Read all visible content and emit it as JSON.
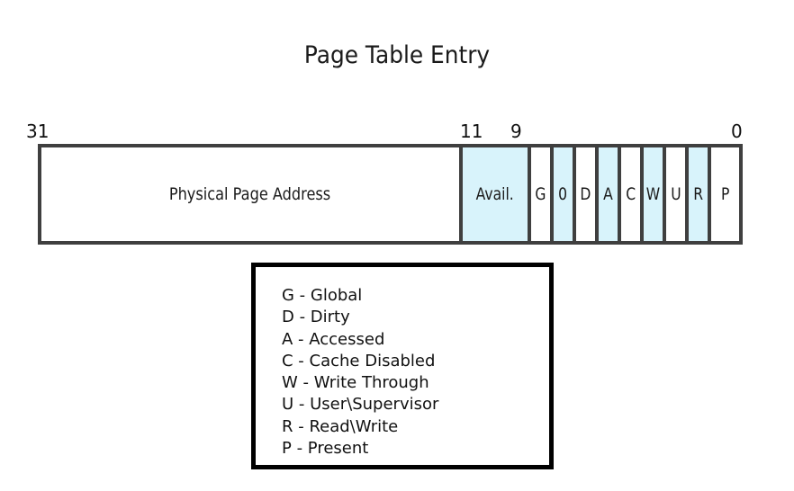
{
  "title": "Page Table Entry",
  "bit_numbers": {
    "left": "31",
    "mid_a": "11",
    "mid_b": "9",
    "right": "0"
  },
  "fields": [
    {
      "label": "Physical Page Address",
      "highlight": false
    },
    {
      "label": "Avail.",
      "highlight": true
    },
    {
      "label": "G",
      "highlight": false
    },
    {
      "label": "0",
      "highlight": true
    },
    {
      "label": "D",
      "highlight": false
    },
    {
      "label": "A",
      "highlight": true
    },
    {
      "label": "C",
      "highlight": false
    },
    {
      "label": "W",
      "highlight": true
    },
    {
      "label": "U",
      "highlight": false
    },
    {
      "label": "R",
      "highlight": true
    },
    {
      "label": "P",
      "highlight": false
    }
  ],
  "legend": [
    "G - Global",
    "D - Dirty",
    "A - Accessed",
    "C - Cache Disabled",
    "W - Write Through",
    "U - User\\Supervisor",
    "R - Read\\Write",
    "P - Present"
  ],
  "colors": {
    "highlight": "#d8f3fb",
    "border": "#3f3f3f",
    "legend_border": "#000000"
  }
}
